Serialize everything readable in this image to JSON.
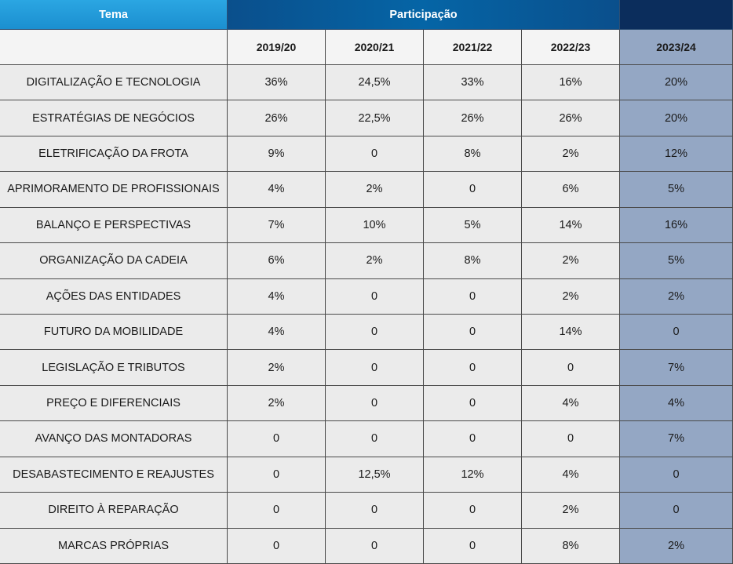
{
  "table": {
    "header": {
      "theme": "Tema",
      "participation": "Participação"
    },
    "columns": [
      "2019/20",
      "2020/21",
      "2021/22",
      "2022/23",
      "2023/24"
    ],
    "rows": [
      [
        "DIGITALIZAÇÃO E TECNOLOGIA",
        "36%",
        "24,5%",
        "33%",
        "16%",
        "20%"
      ],
      [
        "ESTRATÉGIAS DE NEGÓCIOS",
        "26%",
        "22,5%",
        "26%",
        "26%",
        "20%"
      ],
      [
        "ELETRIFICAÇÃO DA FROTA",
        "9%",
        "0",
        "8%",
        "2%",
        "12%"
      ],
      [
        "APRIMORAMENTO DE PROFISSIONAIS",
        "4%",
        "2%",
        "0",
        "6%",
        "5%"
      ],
      [
        "BALANÇO E PERSPECTIVAS",
        "7%",
        "10%",
        "5%",
        "14%",
        "16%"
      ],
      [
        "ORGANIZAÇÃO DA CADEIA",
        "6%",
        "2%",
        "8%",
        "2%",
        "5%"
      ],
      [
        "AÇÕES DAS ENTIDADES",
        "4%",
        "0",
        "0",
        "2%",
        "2%"
      ],
      [
        "FUTURO DA MOBILIDADE",
        "4%",
        "0",
        "0",
        "14%",
        "0"
      ],
      [
        "LEGISLAÇÃO E TRIBUTOS",
        "2%",
        "0",
        "0",
        "0",
        "7%"
      ],
      [
        "PREÇO E DIFERENCIAIS",
        "2%",
        "0",
        "0",
        "4%",
        "4%"
      ],
      [
        "AVANÇO DAS MONTADORAS",
        "0",
        "0",
        "0",
        "0",
        "7%"
      ],
      [
        "DESABASTECIMENTO E REAJUSTES",
        "0",
        "12,5%",
        "12%",
        "4%",
        "0"
      ],
      [
        "DIREITO À REPARAÇÃO",
        "0",
        "0",
        "0",
        "2%",
        "0"
      ],
      [
        "MARCAS PRÓPRIAS",
        "0",
        "0",
        "0",
        "8%",
        "2%"
      ]
    ]
  }
}
